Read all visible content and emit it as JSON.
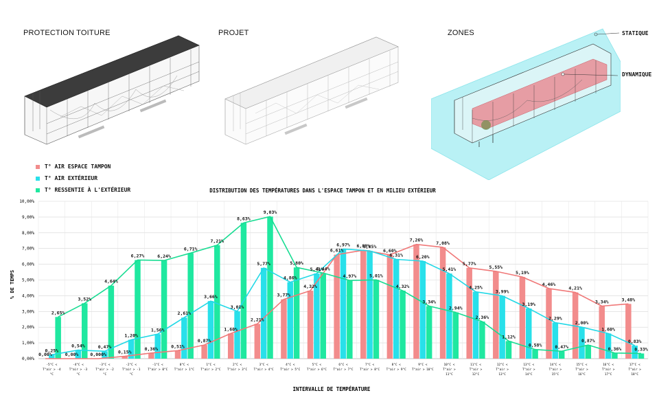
{
  "panels": {
    "protection": "PROTECTION TOITURE",
    "projet": "PROJET",
    "zones": "ZONES"
  },
  "zones": {
    "statique": "STATIQUE",
    "dynamique": "DYNAMIQUE"
  },
  "colors": {
    "tampon": "#f28c8c",
    "exterieur": "#29e0ea",
    "ressentie": "#1fe8a0"
  },
  "chart_data": {
    "type": "bar",
    "title": "DISTRIBUTION DES TEMPÉRATURES DANS L'ESPACE TAMPON ET EN MILIEU EXTÉRIEUR",
    "xlabel": "INTERVALLE DE TEMPÉRATURE",
    "ylabel": "% DE TEMPS",
    "ylim": [
      0,
      10
    ],
    "y_ticks": [
      "0,00%",
      "1,00%",
      "2,00%",
      "3,00%",
      "4,00%",
      "5,00%",
      "6,00%",
      "7,00%",
      "8,00%",
      "9,00%",
      "10,00%"
    ],
    "grid": true,
    "overlay_lines": true,
    "categories": [
      [
        "-5°C <",
        "T°air > -4",
        "°C"
      ],
      [
        "-4°C <",
        "T°air > -3",
        "°C"
      ],
      [
        "-3°C <",
        "T°air > -2",
        "°C"
      ],
      [
        "-2°C <",
        "T°air > -1",
        "°C"
      ],
      [
        "-1°C <",
        "T°air > 0°C",
        ""
      ],
      [
        "0°C <",
        "T°air > 1°C",
        ""
      ],
      [
        "1°C <",
        "T°air > 2°C",
        ""
      ],
      [
        "2°C <",
        "T°air > 3°C",
        ""
      ],
      [
        "3°C <",
        "T°air > 4°C",
        ""
      ],
      [
        "4°C <",
        "T°air > 5°C",
        ""
      ],
      [
        "5°C <",
        "T°air > 6°C",
        ""
      ],
      [
        "6°C <",
        "T°air > 7°C",
        ""
      ],
      [
        "7°C <",
        "T°air > 8°C",
        ""
      ],
      [
        "8°C <",
        "T°air > 9°C",
        ""
      ],
      [
        "9°C <",
        "T°air > 10°C",
        ""
      ],
      [
        "10°C <",
        "T°air >",
        "11°C"
      ],
      [
        "11°C <",
        "T°air >",
        "12°C"
      ],
      [
        "12°C <",
        "T°air >",
        "13°C"
      ],
      [
        "13°C <",
        "T°air >",
        "14°C"
      ],
      [
        "14°C <",
        "T°air >",
        "15°C"
      ],
      [
        "15°C <",
        "T°air >",
        "16°C"
      ],
      [
        "16°C <",
        "T°air >",
        "17°C"
      ],
      [
        "17°C <",
        "T°air >",
        "18°C"
      ]
    ],
    "series": [
      {
        "name": "T° AIR ESPACE TAMPON",
        "color": "#f28c8c",
        "line_color": "#f07878",
        "values": [
          0,
          0,
          0,
          0.15,
          0.36,
          0.51,
          0.87,
          1.6,
          2.21,
          3.77,
          4.32,
          6.61,
          6.89,
          6.6,
          7.26,
          7.08,
          5.77,
          5.55,
          5.19,
          4.46,
          4.21,
          3.34,
          3.48
        ],
        "labels": [
          "0,00%",
          "0,00%",
          "0,000%",
          "0,15%",
          "0,36%",
          "0,51%",
          "0,87%",
          "1,60%",
          "2,21%",
          "3,77%",
          "4,32%",
          "6,61%",
          "6,89%",
          "6,60%",
          "7,26%",
          "7,08%",
          "5,77%",
          "5,55%",
          "5,19%",
          "4,46%",
          "4,21%",
          "3,34%",
          "3,48%"
        ]
      },
      {
        "name": "T° AIR EXTÉRIEUR",
        "color": "#29e0ea",
        "line_color": "#22d8e6",
        "values": [
          0.25,
          0.54,
          0.47,
          1.2,
          1.56,
          2.61,
          3.66,
          3.01,
          5.77,
          4.86,
          5.41,
          6.97,
          6.85,
          6.31,
          6.2,
          5.41,
          4.25,
          3.99,
          3.19,
          2.29,
          2.0,
          1.6,
          0.83
        ],
        "labels": [
          "0,25%",
          "0,54%",
          "0,47%",
          "1,20%",
          "1,56%",
          "2,61%",
          "3,66%",
          "3,01%",
          "5,77%",
          "4,86%",
          "5,41%",
          "6,97%",
          "6,85%",
          "6,31%",
          "6,20%",
          "5,41%",
          "4,25%",
          "3,99%",
          "3,19%",
          "2,29%",
          "2,00%",
          "1,60%",
          "0,83%"
        ]
      },
      {
        "name": "T° RESSENTIE À L'EXTÉRIEUR",
        "color": "#1fe8a0",
        "line_color": "#18dc92",
        "values": [
          2.65,
          3.52,
          4.64,
          6.27,
          6.24,
          6.71,
          7.21,
          8.63,
          9.03,
          5.8,
          5.44,
          4.97,
          5.01,
          4.32,
          3.34,
          2.94,
          2.36,
          1.12,
          0.58,
          0.47,
          0.87,
          0.36,
          0.33
        ],
        "labels": [
          "2,65%",
          "3,52%",
          "4,64%",
          "6,27%",
          "6,24%",
          "6,71%",
          "7,21%",
          "8,63%",
          "9,03%",
          "5,80%",
          "5,44%",
          "4,97%",
          "5,01%",
          "4,32%",
          "3,34%",
          "2,94%",
          "2,36%",
          "1,12%",
          "0,58%",
          "0,47%",
          "0,87%",
          "0,36%",
          "0,33%"
        ]
      }
    ]
  }
}
